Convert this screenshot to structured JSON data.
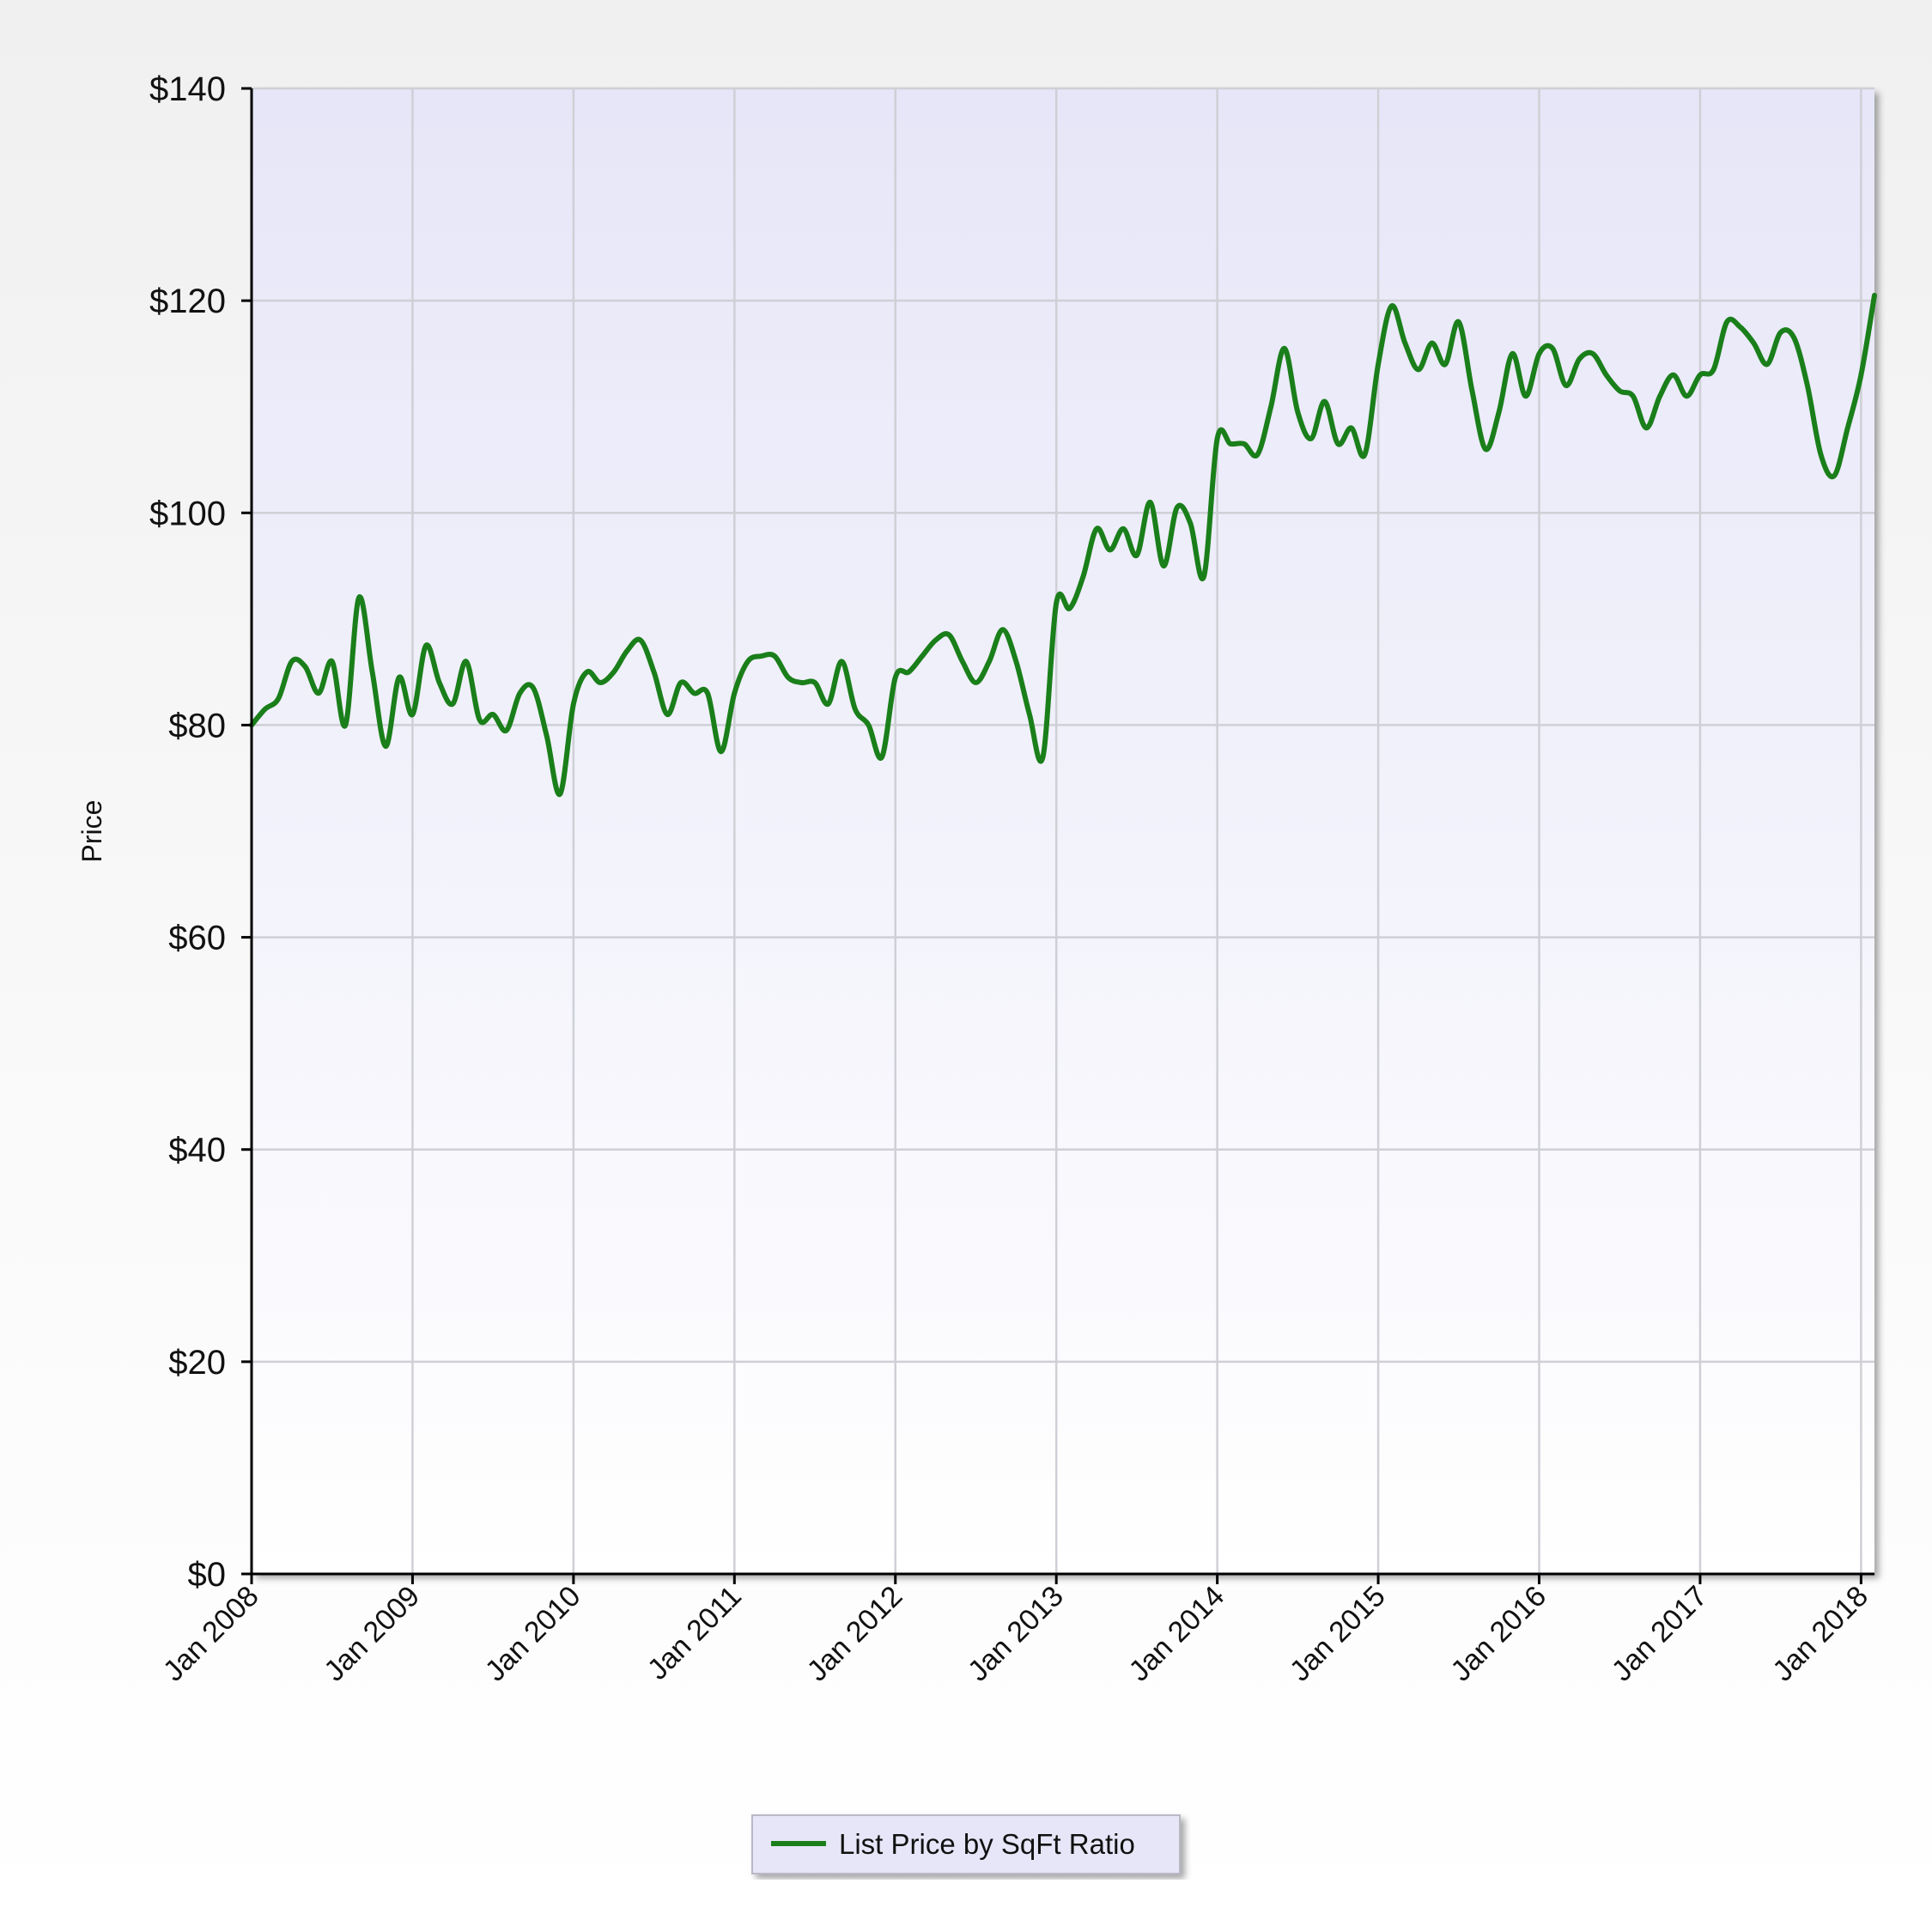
{
  "chart_data": {
    "type": "line",
    "title": "",
    "xlabel": "",
    "ylabel": "Price",
    "ylim": [
      0,
      140
    ],
    "xlim": [
      "Jan 2008",
      "Feb 2018"
    ],
    "y_ticks": [
      "$0",
      "$20",
      "$40",
      "$60",
      "$80",
      "$100",
      "$120",
      "$140"
    ],
    "y_tick_values": [
      0,
      20,
      40,
      60,
      80,
      100,
      120,
      140
    ],
    "x_ticks": [
      "Jan 2008",
      "Jan 2009",
      "Jan 2010",
      "Jan 2011",
      "Jan 2012",
      "Jan 2013",
      "Jan 2014",
      "Jan 2015",
      "Jan 2016",
      "Jan 2017",
      "Jan 2018"
    ],
    "grid": true,
    "legend_position": "bottom-center",
    "series": [
      {
        "name": "List Price by SqFt Ratio",
        "color": "#1a7f1a",
        "x": [
          "2008-01",
          "2008-02",
          "2008-03",
          "2008-04",
          "2008-05",
          "2008-06",
          "2008-07",
          "2008-08",
          "2008-09",
          "2008-10",
          "2008-11",
          "2008-12",
          "2009-01",
          "2009-02",
          "2009-03",
          "2009-04",
          "2009-05",
          "2009-06",
          "2009-07",
          "2009-08",
          "2009-09",
          "2009-10",
          "2009-11",
          "2009-12",
          "2010-01",
          "2010-02",
          "2010-03",
          "2010-04",
          "2010-05",
          "2010-06",
          "2010-07",
          "2010-08",
          "2010-09",
          "2010-10",
          "2010-11",
          "2010-12",
          "2011-01",
          "2011-02",
          "2011-03",
          "2011-04",
          "2011-05",
          "2011-06",
          "2011-07",
          "2011-08",
          "2011-09",
          "2011-10",
          "2011-11",
          "2011-12",
          "2012-01",
          "2012-02",
          "2012-03",
          "2012-04",
          "2012-05",
          "2012-06",
          "2012-07",
          "2012-08",
          "2012-09",
          "2012-10",
          "2012-11",
          "2012-12",
          "2013-01",
          "2013-02",
          "2013-03",
          "2013-04",
          "2013-05",
          "2013-06",
          "2013-07",
          "2013-08",
          "2013-09",
          "2013-10",
          "2013-11",
          "2013-12",
          "2014-01",
          "2014-02",
          "2014-03",
          "2014-04",
          "2014-05",
          "2014-06",
          "2014-07",
          "2014-08",
          "2014-09",
          "2014-10",
          "2014-11",
          "2014-12",
          "2015-01",
          "2015-02",
          "2015-03",
          "2015-04",
          "2015-05",
          "2015-06",
          "2015-07",
          "2015-08",
          "2015-09",
          "2015-10",
          "2015-11",
          "2015-12",
          "2016-01",
          "2016-02",
          "2016-03",
          "2016-04",
          "2016-05",
          "2016-06",
          "2016-07",
          "2016-08",
          "2016-09",
          "2016-10",
          "2016-11",
          "2016-12",
          "2017-01",
          "2017-02",
          "2017-03",
          "2017-04",
          "2017-05",
          "2017-06",
          "2017-07",
          "2017-08",
          "2017-09",
          "2017-10",
          "2017-11",
          "2017-12",
          "2018-01",
          "2018-02"
        ],
        "values": [
          80,
          81.5,
          82.5,
          86,
          85.5,
          83,
          86,
          80,
          92,
          85,
          78,
          84.5,
          81,
          87.5,
          84,
          82,
          86,
          80.5,
          81,
          79.5,
          83,
          83.5,
          79,
          73.5,
          82,
          85,
          84,
          85,
          87,
          88,
          85,
          81,
          84,
          83,
          83,
          77.5,
          83,
          86,
          86.5,
          86.5,
          84.5,
          84,
          84,
          82,
          86,
          81.5,
          80,
          77,
          84.5,
          85,
          86.5,
          88,
          88.5,
          86,
          84,
          86,
          89,
          86,
          81,
          77,
          91.5,
          91,
          94,
          98.5,
          96.5,
          98.5,
          96,
          101,
          95,
          100.5,
          99,
          94,
          107,
          106.5,
          106.5,
          105.5,
          110,
          115.5,
          109.5,
          107,
          110.5,
          106.5,
          108,
          105.5,
          114,
          119.5,
          116,
          113.5,
          116,
          114,
          118,
          111.5,
          106,
          109.5,
          115,
          111,
          115,
          115.5,
          112,
          114.5,
          115,
          113,
          111.5,
          111,
          108,
          111,
          113,
          111,
          113,
          113.5,
          118,
          117.5,
          116,
          114,
          117,
          116.5,
          112,
          105.5,
          103.5,
          108,
          113,
          120.5
        ]
      }
    ]
  }
}
